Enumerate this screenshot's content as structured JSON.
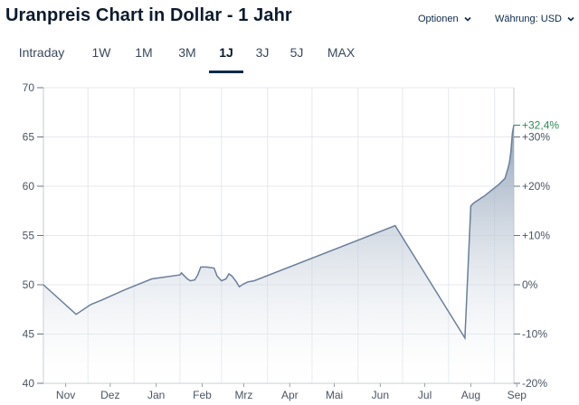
{
  "header": {
    "title": "Uranpreis Chart in Dollar - 1 Jahr",
    "options_label": "Optionen",
    "currency_label": "Währung: USD"
  },
  "tabs": [
    {
      "label": "Intraday",
      "active": false
    },
    {
      "label": "1W",
      "active": false
    },
    {
      "label": "1M",
      "active": false
    },
    {
      "label": "3M",
      "active": false
    },
    {
      "label": "1J",
      "active": true
    },
    {
      "label": "3J",
      "active": false
    },
    {
      "label": "5J",
      "active": false
    },
    {
      "label": "MAX",
      "active": false
    }
  ],
  "colors": {
    "line": "#6b7f99",
    "fill_top": "#8a9db5",
    "grid": "#e4e8ee",
    "axis_text": "#4a5563",
    "highlight": "#2e8b57",
    "active_tab": "#0d2a4a"
  },
  "chart_data": {
    "type": "area",
    "ylim": [
      40,
      70
    ],
    "left_ticks": [
      40,
      45,
      50,
      55,
      60,
      65,
      70
    ],
    "right_ticks": [
      "-20%",
      "-10%",
      "0%",
      "+10%",
      "+20%",
      "+30%"
    ],
    "right_tick_values": [
      -20,
      -10,
      0,
      10,
      20,
      30
    ],
    "x_labels": [
      "Nov",
      "Dez",
      "Jan",
      "Feb",
      "Mrz",
      "Apr",
      "Mai",
      "Jun",
      "Jul",
      "Aug",
      "Sep"
    ],
    "x_label_days": [
      38,
      68,
      99,
      130,
      158,
      189,
      219,
      250,
      280,
      311,
      342
    ],
    "last_change_label": "+32,4%",
    "last_change_value": 32.4,
    "series": [
      {
        "values": [
          [
            23,
            50.0
          ],
          [
            45,
            47.0
          ],
          [
            55,
            48.0
          ],
          [
            63,
            48.5
          ],
          [
            78,
            49.5
          ],
          [
            96,
            50.6
          ],
          [
            115,
            51.0
          ],
          [
            116,
            51.2
          ],
          [
            118,
            50.9
          ],
          [
            120,
            50.6
          ],
          [
            122,
            50.4
          ],
          [
            125,
            50.5
          ],
          [
            127,
            51.0
          ],
          [
            129,
            51.8
          ],
          [
            133,
            51.8
          ],
          [
            138,
            51.7
          ],
          [
            140,
            50.9
          ],
          [
            143,
            50.4
          ],
          [
            146,
            50.6
          ],
          [
            148,
            51.1
          ],
          [
            150,
            50.9
          ],
          [
            153,
            50.3
          ],
          [
            155,
            49.8
          ],
          [
            158,
            50.1
          ],
          [
            161,
            50.3
          ],
          [
            165,
            50.4
          ],
          [
            260,
            56.0
          ],
          [
            307,
            44.6
          ],
          [
            311,
            58.0
          ],
          [
            313,
            58.3
          ],
          [
            320,
            59.0
          ],
          [
            330,
            60.2
          ],
          [
            334,
            60.8
          ],
          [
            336,
            61.8
          ],
          [
            337,
            62.4
          ],
          [
            338,
            63.5
          ],
          [
            339,
            65.4
          ],
          [
            340,
            66.2
          ]
        ]
      }
    ]
  }
}
